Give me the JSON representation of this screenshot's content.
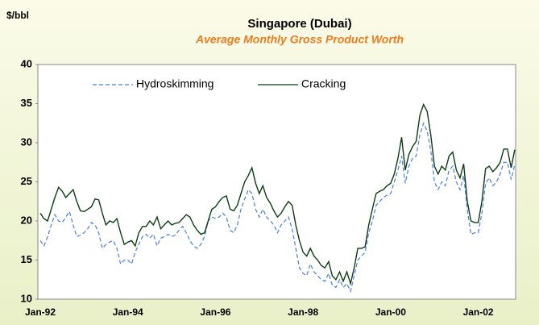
{
  "chart_data": {
    "type": "line",
    "title": "Singapore (Dubai)",
    "subtitle": "Average Monthly Gross Product Worth",
    "y_label": "$/bbl",
    "categories": [
      "Jan-92",
      null,
      null,
      null,
      null,
      null,
      null,
      null,
      null,
      null,
      null,
      null,
      null,
      null,
      null,
      null,
      null,
      null,
      null,
      null,
      null,
      null,
      null,
      null,
      "Jan-94",
      null,
      null,
      null,
      null,
      null,
      null,
      null,
      null,
      null,
      null,
      null,
      null,
      null,
      null,
      null,
      null,
      null,
      null,
      null,
      null,
      null,
      null,
      null,
      "Jan-96",
      null,
      null,
      null,
      null,
      null,
      null,
      null,
      null,
      null,
      null,
      null,
      null,
      null,
      null,
      null,
      null,
      null,
      null,
      null,
      null,
      null,
      null,
      null,
      "Jan-98",
      null,
      null,
      null,
      null,
      null,
      null,
      null,
      null,
      null,
      null,
      null,
      null,
      null,
      null,
      null,
      null,
      null,
      null,
      null,
      null,
      null,
      null,
      null,
      "Jan-00",
      null,
      null,
      null,
      null,
      null,
      null,
      null,
      null,
      null,
      null,
      null,
      null,
      null,
      null,
      null,
      null,
      null,
      null,
      null,
      null,
      null,
      null,
      null,
      "Jan-02",
      null,
      null,
      null,
      null,
      null,
      null,
      null,
      null,
      null,
      null
    ],
    "series": [
      {
        "name": "Hydroskimming",
        "color": "#4a7fe0",
        "dash": true,
        "values": [
          17.5,
          16.8,
          18,
          19.5,
          20.8,
          20,
          19.8,
          20.5,
          21.2,
          19.5,
          18,
          18.2,
          18.5,
          19,
          19.8,
          19.5,
          18.5,
          16.5,
          17,
          17.3,
          17.5,
          16.5,
          14.5,
          15,
          15,
          14.5,
          16,
          17,
          18,
          18.3,
          17.8,
          18.3,
          16.8,
          17.8,
          18,
          18.3,
          18,
          18.2,
          18.8,
          19.3,
          18.5,
          17.5,
          16.8,
          16.5,
          17,
          18,
          20,
          20.5,
          20.3,
          20.5,
          21,
          20.5,
          18.8,
          18.5,
          19.5,
          21.5,
          22.8,
          24,
          23.5,
          21.5,
          20.5,
          21.5,
          20.5,
          20,
          19.5,
          18.5,
          19.5,
          20,
          20.5,
          19,
          16.5,
          14,
          13.3,
          13,
          14.5,
          13.5,
          13,
          12.5,
          12.3,
          13.3,
          11.8,
          11.5,
          12.5,
          11.5,
          12,
          11,
          13,
          15,
          15.5,
          16,
          18.5,
          20,
          22,
          22.5,
          23,
          23.3,
          23.5,
          25,
          26.5,
          28.3,
          24.8,
          27,
          28,
          28.3,
          31,
          32.5,
          31.5,
          29,
          25,
          24,
          25,
          24.5,
          26.5,
          27,
          25,
          24,
          25.8,
          21.5,
          18.3,
          18.5,
          18.5,
          21,
          24.8,
          25.5,
          24.5,
          25,
          26,
          27.5,
          27.5,
          25.3,
          27.2
        ]
      },
      {
        "name": "Cracking",
        "color": "#0b3d12",
        "dash": false,
        "values": [
          21,
          20.3,
          20,
          21.5,
          23,
          24.3,
          23.8,
          23,
          23.5,
          24,
          22.5,
          21.3,
          21.2,
          21.5,
          21.8,
          22.8,
          22.7,
          21,
          19.5,
          20,
          19.8,
          20.3,
          18.5,
          17,
          17.3,
          17.5,
          16.8,
          18.5,
          19.3,
          19.3,
          20,
          19.5,
          20.5,
          19,
          19.5,
          20,
          19.5,
          19.7,
          19.8,
          20.3,
          20.8,
          20.5,
          19.5,
          18.8,
          18.3,
          18.5,
          20,
          21.5,
          21.8,
          22.5,
          23,
          23.2,
          21.5,
          21.3,
          22,
          23.5,
          25,
          25.8,
          26.8,
          24.8,
          23.5,
          24.5,
          23,
          22.3,
          21.3,
          20.5,
          21,
          21.8,
          22.5,
          22,
          19.5,
          17.5,
          16,
          15.5,
          16.5,
          15.5,
          15,
          14.3,
          14,
          14.8,
          13,
          12.5,
          13.5,
          12.3,
          13.5,
          12,
          14,
          16.5,
          16.5,
          16.7,
          19.5,
          21.5,
          23.5,
          23.8,
          24,
          24.5,
          24.8,
          26,
          28,
          30.7,
          26.5,
          28.5,
          29.5,
          30.2,
          33.5,
          34.9,
          34,
          31,
          27,
          26,
          27,
          26.5,
          28.3,
          28.8,
          26.5,
          25.5,
          27.3,
          22.5,
          20,
          19.8,
          19.8,
          22.5,
          26.7,
          27,
          26.3,
          26.8,
          27.5,
          29.2,
          29.2,
          26.8,
          29.1
        ]
      }
    ],
    "ylim": [
      10,
      40
    ],
    "yticks": [
      10,
      15,
      20,
      25,
      30,
      35,
      40
    ],
    "grid": false,
    "legend": "top"
  }
}
